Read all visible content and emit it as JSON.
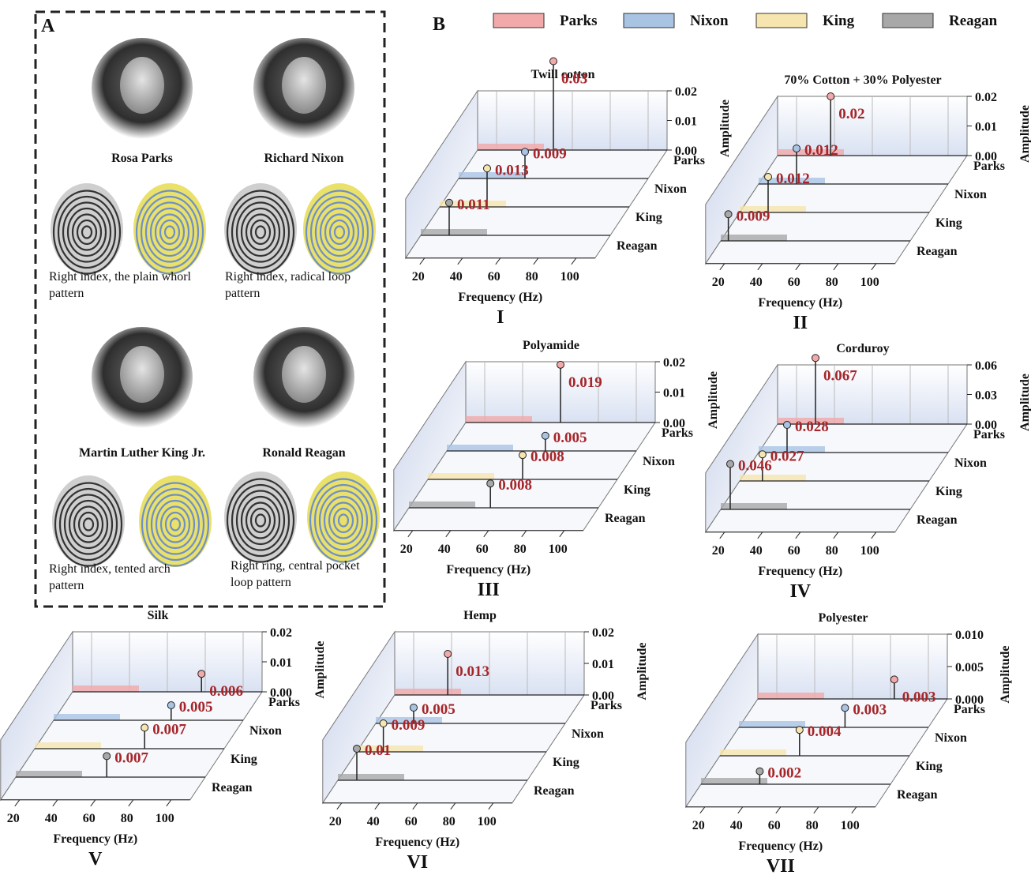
{
  "panel_a": {
    "label": "A",
    "people": [
      {
        "name": "Rosa Parks",
        "caption": "Right index, the plain whorl pattern"
      },
      {
        "name": "Richard Nixon",
        "caption": "Right index, radical loop pattern"
      },
      {
        "name": "Martin Luther King Jr.",
        "caption": "Right index, tented arch pattern"
      },
      {
        "name": "Ronald Reagan",
        "caption": "Right ring, central pocket loop pattern"
      }
    ]
  },
  "panel_b": {
    "label": "B",
    "legend": [
      {
        "name": "Parks",
        "color": "#f2a9a9"
      },
      {
        "name": "Nixon",
        "color": "#a9c3e3"
      },
      {
        "name": "King",
        "color": "#f6e5ae"
      },
      {
        "name": "Reagan",
        "color": "#a8a8a8"
      }
    ]
  },
  "chart_data": [
    {
      "type": "waterfall",
      "title": "Twill cotton",
      "label": "I",
      "x_label": "Frequency (Hz)",
      "y_label": "Amplitude",
      "xlim": [
        10,
        110
      ],
      "xticks": [
        20,
        40,
        60,
        80,
        100
      ],
      "ylim": [
        0,
        0.02
      ],
      "yticks": [
        {
          "value": 0,
          "label": "0.00"
        },
        {
          "value": 0.01,
          "label": "0.01"
        },
        {
          "value": 0.02,
          "label": "0.02"
        }
      ],
      "series": [
        {
          "name": "Parks",
          "color": "#f2a9a9",
          "x": [
            50
          ],
          "values": [
            0.03
          ]
        },
        {
          "name": "Nixon",
          "color": "#a9c3e3",
          "x": [
            45
          ],
          "values": [
            0.009
          ]
        },
        {
          "name": "King",
          "color": "#f6e5ae",
          "x": [
            35
          ],
          "values": [
            0.013
          ]
        },
        {
          "name": "Reagan",
          "color": "#a8a8a8",
          "x": [
            25
          ],
          "values": [
            0.011
          ]
        }
      ]
    },
    {
      "type": "waterfall",
      "title": "70% Cotton + 30% Polyester",
      "label": "II",
      "x_label": "Frequency (Hz)",
      "y_label": "Amplitude",
      "xlim": [
        10,
        110
      ],
      "xticks": [
        20,
        40,
        60,
        80,
        100
      ],
      "ylim": [
        0,
        0.02
      ],
      "yticks": [
        {
          "value": 0,
          "label": "0.00"
        },
        {
          "value": 0.01,
          "label": "0.01"
        },
        {
          "value": 0.02,
          "label": "0.02"
        }
      ],
      "series": [
        {
          "name": "Parks",
          "color": "#f2a9a9",
          "x": [
            38
          ],
          "values": [
            0.02
          ]
        },
        {
          "name": "Nixon",
          "color": "#a9c3e3",
          "x": [
            30
          ],
          "values": [
            0.012
          ]
        },
        {
          "name": "King",
          "color": "#f6e5ae",
          "x": [
            25
          ],
          "values": [
            0.012
          ]
        },
        {
          "name": "Reagan",
          "color": "#a8a8a8",
          "x": [
            14
          ],
          "values": [
            0.009
          ]
        }
      ]
    },
    {
      "type": "waterfall",
      "title": "Polyamide",
      "label": "III",
      "x_label": "Frequency (Hz)",
      "y_label": "Amplitude",
      "xlim": [
        10,
        110
      ],
      "xticks": [
        20,
        40,
        60,
        80,
        100
      ],
      "ylim": [
        0,
        0.02
      ],
      "yticks": [
        {
          "value": 0,
          "label": "0.00"
        },
        {
          "value": 0.01,
          "label": "0.01"
        },
        {
          "value": 0.02,
          "label": "0.02"
        }
      ],
      "series": [
        {
          "name": "Parks",
          "color": "#f2a9a9",
          "x": [
            60
          ],
          "values": [
            0.019
          ]
        },
        {
          "name": "Nixon",
          "color": "#a9c3e3",
          "x": [
            62
          ],
          "values": [
            0.005
          ]
        },
        {
          "name": "King",
          "color": "#f6e5ae",
          "x": [
            60
          ],
          "values": [
            0.008
          ]
        },
        {
          "name": "Reagan",
          "color": "#a8a8a8",
          "x": [
            53
          ],
          "values": [
            0.008
          ]
        }
      ]
    },
    {
      "type": "waterfall",
      "title": "Corduroy",
      "label": "IV",
      "x_label": "Frequency (Hz)",
      "y_label": "Amplitude",
      "xlim": [
        10,
        110
      ],
      "xticks": [
        20,
        40,
        60,
        80,
        100
      ],
      "ylim": [
        0,
        0.06
      ],
      "yticks": [
        {
          "value": 0,
          "label": "0.00"
        },
        {
          "value": 0.03,
          "label": "0.03"
        },
        {
          "value": 0.06,
          "label": "0.06"
        }
      ],
      "series": [
        {
          "name": "Parks",
          "color": "#f2a9a9",
          "x": [
            30
          ],
          "values": [
            0.067
          ]
        },
        {
          "name": "Nixon",
          "color": "#a9c3e3",
          "x": [
            25
          ],
          "values": [
            0.028
          ]
        },
        {
          "name": "King",
          "color": "#f6e5ae",
          "x": [
            22
          ],
          "values": [
            0.027
          ]
        },
        {
          "name": "Reagan",
          "color": "#a8a8a8",
          "x": [
            15
          ],
          "values": [
            0.046
          ]
        }
      ]
    },
    {
      "type": "waterfall",
      "title": "Silk",
      "label": "V",
      "x_label": "Frequency (Hz)",
      "y_label": "Amplitude",
      "xlim": [
        10,
        110
      ],
      "xticks": [
        20,
        40,
        60,
        80,
        100
      ],
      "ylim": [
        0,
        0.02
      ],
      "yticks": [
        {
          "value": 0,
          "label": "0.00"
        },
        {
          "value": 0.01,
          "label": "0.01"
        },
        {
          "value": 0.02,
          "label": "0.02"
        }
      ],
      "series": [
        {
          "name": "Parks",
          "color": "#f2a9a9",
          "x": [
            78
          ],
          "values": [
            0.006
          ]
        },
        {
          "name": "Nixon",
          "color": "#a9c3e3",
          "x": [
            72
          ],
          "values": [
            0.005
          ]
        },
        {
          "name": "King",
          "color": "#f6e5ae",
          "x": [
            68
          ],
          "values": [
            0.007
          ]
        },
        {
          "name": "Reagan",
          "color": "#a8a8a8",
          "x": [
            58
          ],
          "values": [
            0.007
          ]
        }
      ]
    },
    {
      "type": "waterfall",
      "title": "Hemp",
      "label": "VI",
      "x_label": "Frequency (Hz)",
      "y_label": "Amplitude",
      "xlim": [
        10,
        110
      ],
      "xticks": [
        20,
        40,
        60,
        80,
        100
      ],
      "ylim": [
        0,
        0.02
      ],
      "yticks": [
        {
          "value": 0,
          "label": "0.00"
        },
        {
          "value": 0.01,
          "label": "0.01"
        },
        {
          "value": 0.02,
          "label": "0.02"
        }
      ],
      "series": [
        {
          "name": "Parks",
          "color": "#f2a9a9",
          "x": [
            38
          ],
          "values": [
            0.013
          ]
        },
        {
          "name": "Nixon",
          "color": "#a9c3e3",
          "x": [
            30
          ],
          "values": [
            0.005
          ]
        },
        {
          "name": "King",
          "color": "#f6e5ae",
          "x": [
            24
          ],
          "values": [
            0.009
          ]
        },
        {
          "name": "Reagan",
          "color": "#a8a8a8",
          "x": [
            20
          ],
          "values": [
            0.01
          ]
        }
      ]
    },
    {
      "type": "waterfall",
      "title": "Polyester",
      "label": "VII",
      "x_label": "Frequency (Hz)",
      "y_label": "Amplitude",
      "xlim": [
        10,
        110
      ],
      "xticks": [
        20,
        40,
        60,
        80,
        100
      ],
      "ylim": [
        0,
        0.01
      ],
      "yticks": [
        {
          "value": 0,
          "label": "0.000"
        },
        {
          "value": 0.005,
          "label": "0.005"
        },
        {
          "value": 0.01,
          "label": "0.010"
        }
      ],
      "series": [
        {
          "name": "Parks",
          "color": "#f2a9a9",
          "x": [
            82
          ],
          "values": [
            0.003
          ]
        },
        {
          "name": "Nixon",
          "color": "#a9c3e3",
          "x": [
            66
          ],
          "values": [
            0.003
          ]
        },
        {
          "name": "King",
          "color": "#f6e5ae",
          "x": [
            52
          ],
          "values": [
            0.004
          ]
        },
        {
          "name": "Reagan",
          "color": "#a8a8a8",
          "x": [
            41
          ],
          "values": [
            0.002
          ]
        }
      ]
    }
  ]
}
